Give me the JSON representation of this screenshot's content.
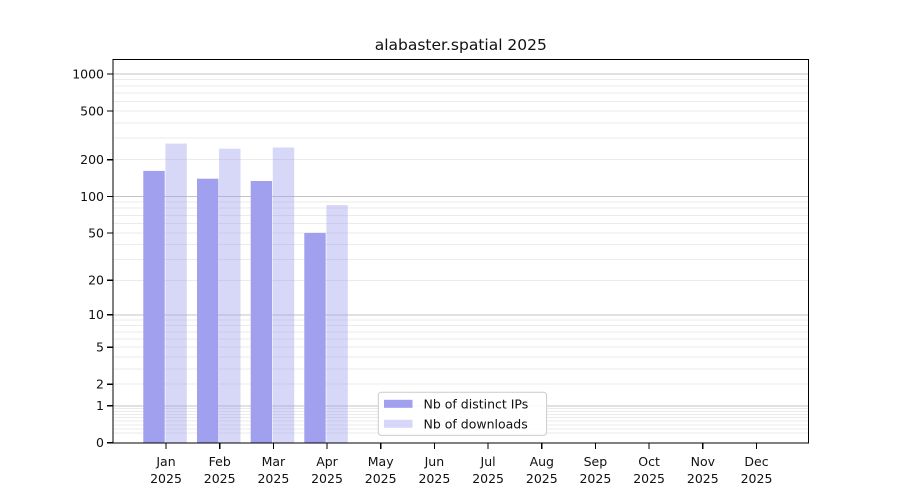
{
  "chart_data": {
    "type": "bar",
    "title": "alabaster.spatial 2025",
    "year": "2025",
    "categories": [
      "Jan",
      "Feb",
      "Mar",
      "Apr",
      "May",
      "Jun",
      "Jul",
      "Aug",
      "Sep",
      "Oct",
      "Nov",
      "Dec"
    ],
    "x_tick_labels": [
      "Jan 2025",
      "Feb 2025",
      "Mar 2025",
      "Apr 2025",
      "May 2025",
      "Jun 2025",
      "Jul 2025",
      "Aug 2025",
      "Sep 2025",
      "Oct 2025",
      "Nov 2025",
      "Dec 2025"
    ],
    "series": [
      {
        "name": "Nb of distinct IPs",
        "color": "#a0a0ef",
        "fill_opacity": 1,
        "rendered_color": "#a2a2f0",
        "values": [
          162,
          140,
          134,
          50,
          null,
          null,
          null,
          null,
          null,
          null,
          null,
          null
        ]
      },
      {
        "name": "Nb of downloads",
        "color": "#a0a0ef",
        "fill_opacity": 0.42,
        "rendered_color": "#dcdcf8",
        "values": [
          271,
          246,
          252,
          85,
          null,
          null,
          null,
          null,
          null,
          null,
          null,
          null
        ]
      }
    ],
    "yscale": "log1p",
    "yticks": [
      1000,
      500,
      200,
      100,
      50,
      20,
      10,
      5,
      2,
      1,
      0
    ],
    "ylim": [
      0,
      1310
    ],
    "xlabel": "",
    "ylabel": "",
    "grid": "horizontal major+minor log gridlines",
    "legend_position": "lower center inside plot",
    "background_color": "#ffffff",
    "text_color": "#111111"
  }
}
